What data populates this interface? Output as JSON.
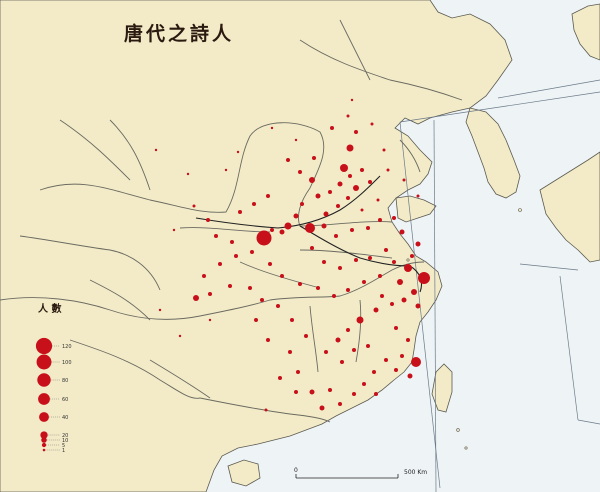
{
  "title": "唐代之詩人",
  "colors": {
    "sea": "#eef3f6",
    "land": "#f3ebc8",
    "coast": "#5a5a50",
    "river": "#6a6a60",
    "dot": "#c8101a",
    "grid": "#6a7a88"
  },
  "legend": {
    "title": "人 數",
    "entries": [
      {
        "label": "120",
        "value": 120
      },
      {
        "label": "100",
        "value": 100
      },
      {
        "label": "80",
        "value": 80
      },
      {
        "label": "60",
        "value": 60
      },
      {
        "label": "40",
        "value": 40
      },
      {
        "label": "20",
        "value": 20
      },
      {
        "label": "10",
        "value": 10
      },
      {
        "label": "5",
        "value": 5
      },
      {
        "label": "1",
        "value": 1
      }
    ]
  },
  "scale_bar": {
    "start_label": "0",
    "end_label": "500 Km"
  }
}
